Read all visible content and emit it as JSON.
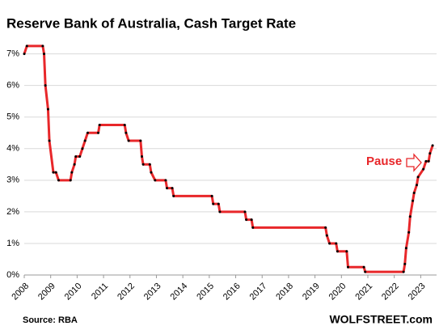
{
  "chart_data": {
    "type": "line",
    "title": "Reserve Bank of Australia, Cash Target Rate",
    "source": "Source: RBA",
    "brand": "WOLFSTREET.com",
    "annotation": "Pause",
    "color": "#e8272a",
    "marker_color": "#000000",
    "grid": true,
    "xlim": [
      2008,
      2023.6
    ],
    "ylim": [
      0,
      7.4
    ],
    "xticks": [
      2008,
      2009,
      2010,
      2011,
      2012,
      2013,
      2014,
      2015,
      2016,
      2017,
      2018,
      2019,
      2020,
      2021,
      2022,
      2023
    ],
    "yticks": [
      {
        "value": 0,
        "label": "0%"
      },
      {
        "value": 1,
        "label": "1%"
      },
      {
        "value": 2,
        "label": "2%"
      },
      {
        "value": 3,
        "label": "3%"
      },
      {
        "value": 4,
        "label": "4%"
      },
      {
        "value": 5,
        "label": "5%"
      },
      {
        "value": 6,
        "label": "6%"
      },
      {
        "value": 7,
        "label": "7%"
      }
    ],
    "x": [
      2008.0,
      2008.1,
      2008.7,
      2008.75,
      2008.8,
      2008.9,
      2008.95,
      2009.1,
      2009.2,
      2009.3,
      2009.75,
      2009.8,
      2009.9,
      2009.95,
      2010.1,
      2010.2,
      2010.3,
      2010.4,
      2010.8,
      2010.85,
      2011.8,
      2011.85,
      2011.95,
      2012.4,
      2012.45,
      2012.5,
      2012.75,
      2012.8,
      2012.95,
      2013.35,
      2013.4,
      2013.6,
      2013.65,
      2015.1,
      2015.15,
      2015.35,
      2015.4,
      2016.35,
      2016.4,
      2016.6,
      2016.65,
      2019.4,
      2019.45,
      2019.55,
      2019.8,
      2019.85,
      2020.2,
      2020.25,
      2020.85,
      2020.9,
      2022.35,
      2022.4,
      2022.45,
      2022.55,
      2022.6,
      2022.7,
      2022.75,
      2022.85,
      2022.9,
      2023.1,
      2023.2,
      2023.3,
      2023.35,
      2023.45
    ],
    "values": [
      7.0,
      7.25,
      7.25,
      7.0,
      6.0,
      5.25,
      4.25,
      3.25,
      3.25,
      3.0,
      3.0,
      3.25,
      3.5,
      3.75,
      3.75,
      4.0,
      4.25,
      4.5,
      4.5,
      4.75,
      4.75,
      4.5,
      4.25,
      4.25,
      3.75,
      3.5,
      3.5,
      3.25,
      3.0,
      3.0,
      2.75,
      2.75,
      2.5,
      2.5,
      2.25,
      2.25,
      2.0,
      2.0,
      1.75,
      1.75,
      1.5,
      1.5,
      1.25,
      1.0,
      1.0,
      0.75,
      0.75,
      0.25,
      0.25,
      0.1,
      0.1,
      0.35,
      0.85,
      1.35,
      1.85,
      2.35,
      2.6,
      2.85,
      3.1,
      3.35,
      3.6,
      3.6,
      3.85,
      4.1
    ]
  }
}
